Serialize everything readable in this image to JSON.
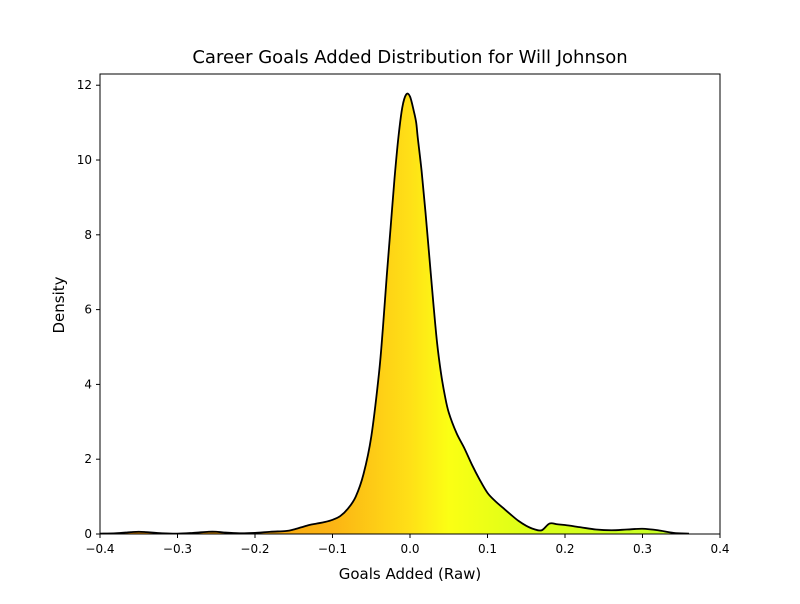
{
  "chart_data": {
    "type": "area",
    "title": "Career Goals Added Distribution for Will Johnson",
    "xlabel": "Goals Added (Raw)",
    "ylabel": "Density",
    "xlim": [
      -0.4,
      0.4
    ],
    "ylim": [
      0,
      12.3
    ],
    "x_ticks": [
      -0.4,
      -0.3,
      -0.2,
      -0.1,
      0.0,
      0.1,
      0.2,
      0.3,
      0.4
    ],
    "x_tick_labels": [
      "−0.4",
      "−0.3",
      "−0.2",
      "−0.1",
      "0.0",
      "0.1",
      "0.2",
      "0.3",
      "0.4"
    ],
    "y_ticks": [
      0,
      2,
      4,
      6,
      8,
      10,
      12
    ],
    "y_tick_labels": [
      "0",
      "2",
      "4",
      "6",
      "8",
      "10",
      "12"
    ],
    "grid": false,
    "legend": "none",
    "fill_gradient": {
      "description": "fill color varies with x: orange on the negative side through yellow near zero to yellow-green on the positive side",
      "stops": [
        {
          "x": -0.4,
          "color": "#f08a00"
        },
        {
          "x": -0.1,
          "color": "#fbb414"
        },
        {
          "x": 0.0,
          "color": "#ffe017"
        },
        {
          "x": 0.05,
          "color": "#fbff14"
        },
        {
          "x": 0.15,
          "color": "#dcff18"
        },
        {
          "x": 0.36,
          "color": "#c4ff2a"
        }
      ]
    },
    "line_color": "#000000",
    "series": [
      {
        "x": [
          -0.4,
          -0.38,
          -0.36,
          -0.35,
          -0.34,
          -0.32,
          -0.3,
          -0.28,
          -0.26,
          -0.25,
          -0.24,
          -0.22,
          -0.2,
          -0.18,
          -0.16,
          -0.15,
          -0.14,
          -0.13,
          -0.12,
          -0.11,
          -0.1,
          -0.09,
          -0.08,
          -0.07,
          -0.06,
          -0.05,
          -0.04,
          -0.035,
          -0.03,
          -0.025,
          -0.02,
          -0.015,
          -0.01,
          -0.005,
          0.0,
          0.005,
          0.008,
          0.01,
          0.015,
          0.02,
          0.025,
          0.03,
          0.035,
          0.04,
          0.045,
          0.05,
          0.06,
          0.07,
          0.08,
          0.09,
          0.1,
          0.11,
          0.12,
          0.13,
          0.14,
          0.15,
          0.16,
          0.17,
          0.18,
          0.19,
          0.2,
          0.22,
          0.24,
          0.26,
          0.28,
          0.3,
          0.32,
          0.34,
          0.36
        ],
        "y": [
          0.01,
          0.02,
          0.05,
          0.06,
          0.05,
          0.02,
          0.01,
          0.03,
          0.06,
          0.06,
          0.04,
          0.02,
          0.03,
          0.06,
          0.08,
          0.12,
          0.18,
          0.24,
          0.28,
          0.32,
          0.38,
          0.48,
          0.68,
          1.0,
          1.6,
          2.6,
          4.3,
          5.5,
          6.9,
          8.2,
          9.5,
          10.6,
          11.4,
          11.75,
          11.7,
          11.3,
          11.0,
          10.6,
          9.7,
          8.6,
          7.4,
          6.2,
          5.1,
          4.3,
          3.7,
          3.25,
          2.7,
          2.3,
          1.85,
          1.45,
          1.1,
          0.88,
          0.7,
          0.52,
          0.35,
          0.22,
          0.13,
          0.1,
          0.28,
          0.26,
          0.24,
          0.18,
          0.12,
          0.1,
          0.12,
          0.14,
          0.1,
          0.03,
          0.01
        ]
      }
    ]
  }
}
